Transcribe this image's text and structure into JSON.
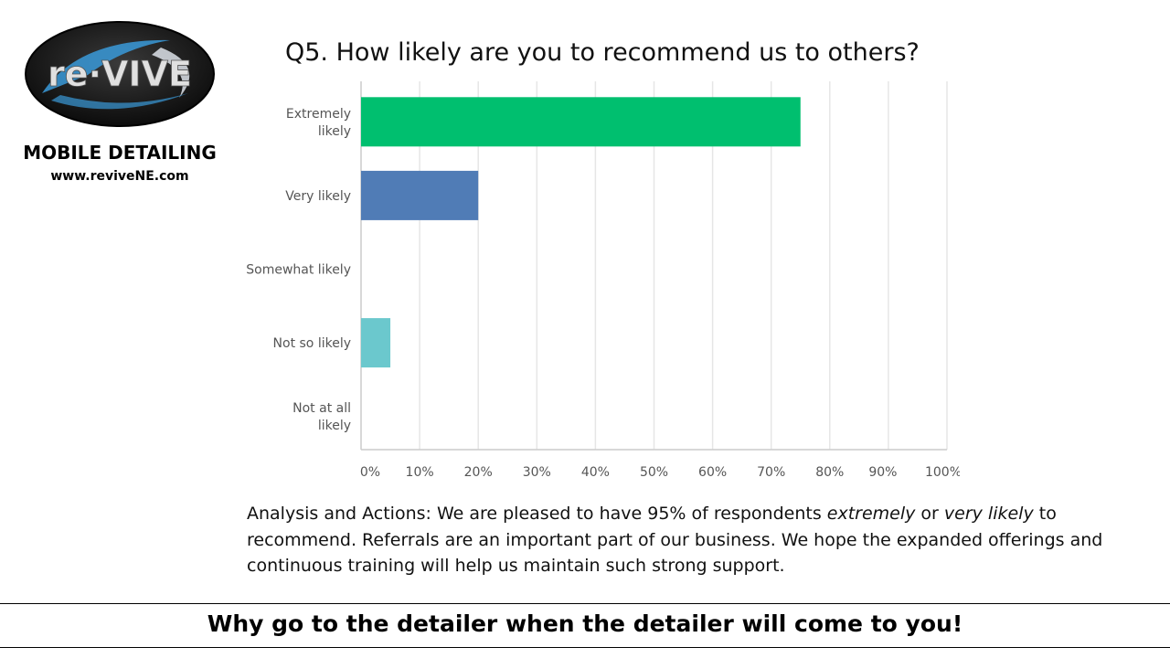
{
  "brand": {
    "logo_text": "re·VIVE",
    "service": "MOBILE DETAILING",
    "website": "www.reviveNE.com",
    "colors": {
      "logo_bg": "#1c1c1c",
      "logo_swoosh": "#3a9ad9",
      "logo_text": "#d8d8d8"
    }
  },
  "chart_data": {
    "type": "bar",
    "orientation": "horizontal",
    "title": "Q5. How likely are you to recommend us to others?",
    "categories": [
      "Extremely likely",
      "Very likely",
      "Somewhat likely",
      "Not so likely",
      "Not at all likely"
    ],
    "category_lines": [
      [
        "Extremely",
        "likely"
      ],
      [
        "Very likely"
      ],
      [
        "Somewhat likely"
      ],
      [
        "Not so likely"
      ],
      [
        "Not at all",
        "likely"
      ]
    ],
    "values": [
      75,
      20,
      0,
      5,
      0
    ],
    "colors": [
      "#00bf6f",
      "#507cb6",
      "#f05b24",
      "#6bc8cd",
      "#ebc95c"
    ],
    "xlim": [
      0,
      100
    ],
    "ticks": [
      "0%",
      "10%",
      "20%",
      "30%",
      "40%",
      "50%",
      "60%",
      "70%",
      "80%",
      "90%",
      "100%"
    ],
    "grid": true,
    "grid_color": "#e6e6e6"
  },
  "analysis": {
    "prefix": "Analysis and Actions: We are pleased to have 95% of respondents ",
    "em1": "extremely",
    "mid": " or ",
    "em2": "very likely",
    "suffix": " to recommend. Referrals are an important part of our business. We hope the expanded offerings and continuous training will help us maintain such strong support."
  },
  "tagline": "Why go to the detailer when the detailer will come to you!"
}
